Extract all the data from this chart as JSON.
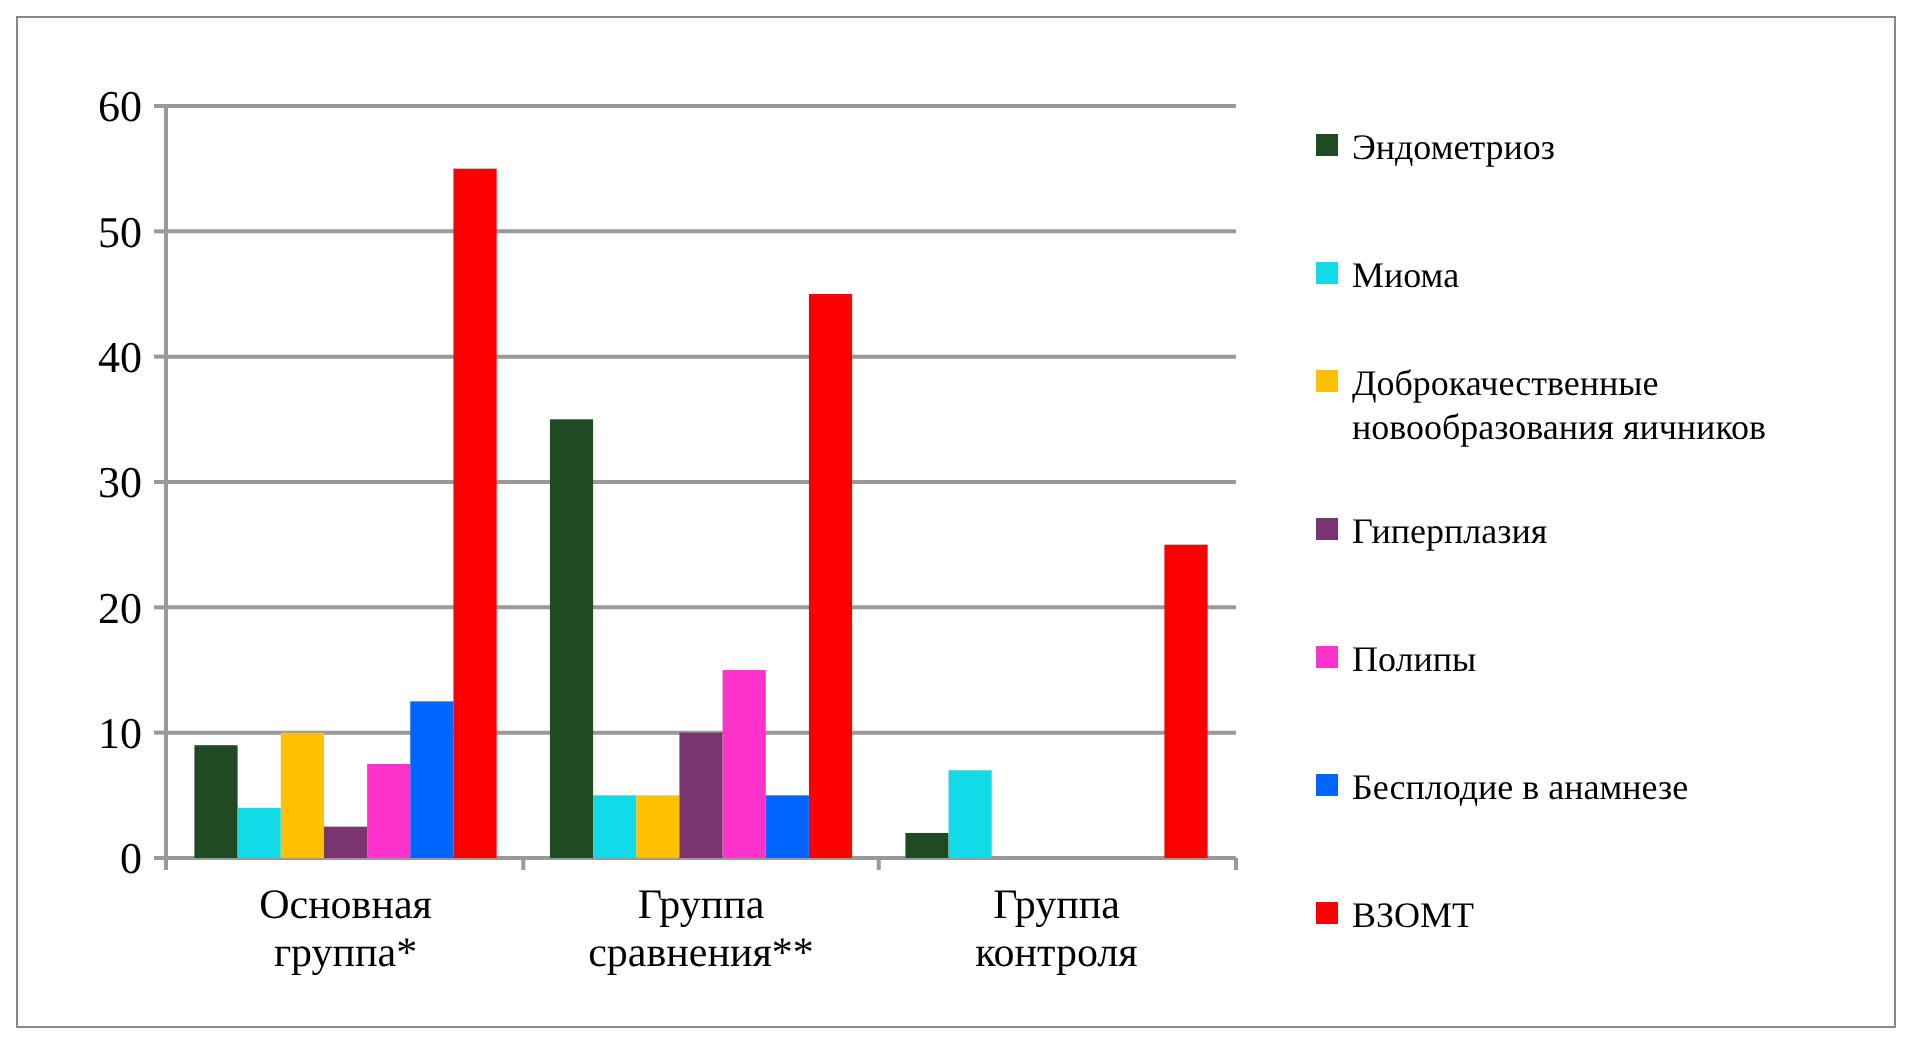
{
  "chart_data": {
    "type": "bar",
    "categories": [
      "Основная группа*",
      "Группа сравнения**",
      "Группа контроля"
    ],
    "series": [
      {
        "name": "Эндометриоз",
        "color": "#1f4a22",
        "values": [
          9,
          35,
          2
        ]
      },
      {
        "name": "Миома",
        "color": "#12dbe8",
        "values": [
          4,
          5,
          7
        ]
      },
      {
        "name": "Доброкачественные новообразования яичников",
        "color": "#ffc000",
        "values": [
          10,
          5,
          0
        ]
      },
      {
        "name": "Гиперплазия",
        "color": "#7a3470",
        "values": [
          2.5,
          10,
          0
        ]
      },
      {
        "name": "Полипы",
        "color": "#ff33cc",
        "values": [
          7.5,
          15,
          0
        ]
      },
      {
        "name": "Бесплодие в анамнезе",
        "color": "#0066ff",
        "values": [
          12.5,
          5,
          0
        ]
      },
      {
        "name": "ВЗОМТ",
        "color": "#ff0000",
        "values": [
          55,
          45,
          25
        ]
      }
    ],
    "ylim": [
      0,
      60
    ],
    "yticks": [
      0,
      10,
      20,
      30,
      40,
      50,
      60
    ],
    "grid": "y",
    "legend": "right"
  }
}
